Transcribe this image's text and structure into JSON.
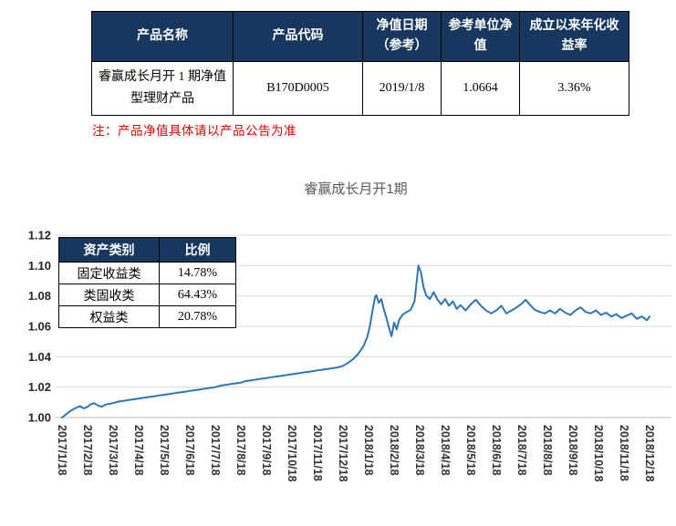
{
  "colors": {
    "header_bg": "#17375E",
    "note_red": "#E00000",
    "line_blue": "#2E75B6",
    "grid_gray": "#D9D9D9",
    "axis_gray": "#BFBFBF",
    "title_gray": "#595959"
  },
  "product_table": {
    "headers": [
      "产品名称",
      "产品代码",
      "净值日期（参考）",
      "参考单位净值",
      "成立以来年化收益率"
    ],
    "rows": [
      [
        "睿赢成长月开 1 期净值型理财产品",
        "B170D0005",
        "2019/1/8",
        "1.0664",
        "3.36%"
      ]
    ]
  },
  "note": "注：产品净值具体请以产品公告为准",
  "chart_data": {
    "type": "line",
    "title": "睿赢成长月开1期",
    "ylabel": "",
    "xlabel": "",
    "ylim": [
      1.0,
      1.12
    ],
    "ytick_step": 0.02,
    "grid": true,
    "x_tick_labels": [
      "2017/1/18",
      "2017/2/18",
      "2017/3/18",
      "2017/4/18",
      "2017/5/18",
      "2017/6/18",
      "2017/7/18",
      "2017/8/18",
      "2017/9/18",
      "2017/10/18",
      "2017/11/18",
      "2017/12/18",
      "2018/1/18",
      "2018/2/18",
      "2018/3/18",
      "2018/4/18",
      "2018/5/18",
      "2018/6/18",
      "2018/7/18",
      "2018/8/18",
      "2018/9/18",
      "2018/10/18",
      "2018/11/18",
      "2018/12/18"
    ],
    "series": [
      {
        "name": "睿赢成长月开1期净值",
        "color": "#2E75B6",
        "points": [
          [
            0,
            1.0
          ],
          [
            0.15,
            1.002
          ],
          [
            0.3,
            1.004
          ],
          [
            0.5,
            1.006
          ],
          [
            0.7,
            1.0075
          ],
          [
            0.85,
            1.006
          ],
          [
            1.0,
            1.007
          ],
          [
            1.1,
            1.0085
          ],
          [
            1.25,
            1.0095
          ],
          [
            1.4,
            1.008
          ],
          [
            1.55,
            1.007
          ],
          [
            1.7,
            1.0085
          ],
          [
            1.85,
            1.009
          ],
          [
            2.0,
            1.0095
          ],
          [
            2.2,
            1.0105
          ],
          [
            2.4,
            1.011
          ],
          [
            2.6,
            1.0115
          ],
          [
            2.8,
            1.012
          ],
          [
            3.0,
            1.0125
          ],
          [
            3.2,
            1.013
          ],
          [
            3.4,
            1.0135
          ],
          [
            3.6,
            1.014
          ],
          [
            3.8,
            1.0145
          ],
          [
            4.0,
            1.015
          ],
          [
            4.2,
            1.0155
          ],
          [
            4.4,
            1.016
          ],
          [
            4.6,
            1.0165
          ],
          [
            4.8,
            1.017
          ],
          [
            5.0,
            1.0175
          ],
          [
            5.2,
            1.018
          ],
          [
            5.4,
            1.0185
          ],
          [
            5.6,
            1.019
          ],
          [
            5.8,
            1.0195
          ],
          [
            6.0,
            1.02
          ],
          [
            6.2,
            1.021
          ],
          [
            6.4,
            1.0215
          ],
          [
            6.6,
            1.022
          ],
          [
            6.8,
            1.0225
          ],
          [
            7.0,
            1.023
          ],
          [
            7.2,
            1.024
          ],
          [
            7.4,
            1.0245
          ],
          [
            7.6,
            1.025
          ],
          [
            7.8,
            1.0255
          ],
          [
            8.0,
            1.026
          ],
          [
            8.2,
            1.0265
          ],
          [
            8.4,
            1.027
          ],
          [
            8.6,
            1.0275
          ],
          [
            8.8,
            1.028
          ],
          [
            9.0,
            1.0285
          ],
          [
            9.2,
            1.029
          ],
          [
            9.4,
            1.0295
          ],
          [
            9.6,
            1.03
          ],
          [
            9.8,
            1.0305
          ],
          [
            10.0,
            1.031
          ],
          [
            10.2,
            1.0315
          ],
          [
            10.4,
            1.032
          ],
          [
            10.6,
            1.0325
          ],
          [
            10.8,
            1.033
          ],
          [
            11.0,
            1.034
          ],
          [
            11.2,
            1.036
          ],
          [
            11.4,
            1.0385
          ],
          [
            11.6,
            1.042
          ],
          [
            11.8,
            1.047
          ],
          [
            11.95,
            1.053
          ],
          [
            12.05,
            1.06
          ],
          [
            12.15,
            1.07
          ],
          [
            12.25,
            1.079
          ],
          [
            12.3,
            1.0805
          ],
          [
            12.4,
            1.0755
          ],
          [
            12.5,
            1.078
          ],
          [
            12.6,
            1.071
          ],
          [
            12.7,
            1.0655
          ],
          [
            12.8,
            1.059
          ],
          [
            12.9,
            1.0535
          ],
          [
            13.0,
            1.0625
          ],
          [
            13.1,
            1.058
          ],
          [
            13.2,
            1.0645
          ],
          [
            13.35,
            1.068
          ],
          [
            13.5,
            1.0695
          ],
          [
            13.65,
            1.071
          ],
          [
            13.8,
            1.0765
          ],
          [
            13.9,
            1.092
          ],
          [
            13.95,
            1.1
          ],
          [
            14.05,
            1.0955
          ],
          [
            14.15,
            1.086
          ],
          [
            14.25,
            1.0805
          ],
          [
            14.4,
            1.078
          ],
          [
            14.55,
            1.0825
          ],
          [
            14.7,
            1.0775
          ],
          [
            14.85,
            1.0745
          ],
          [
            15.0,
            1.078
          ],
          [
            15.15,
            1.0735
          ],
          [
            15.3,
            1.0765
          ],
          [
            15.45,
            1.0715
          ],
          [
            15.6,
            1.074
          ],
          [
            15.8,
            1.0705
          ],
          [
            16.0,
            1.0745
          ],
          [
            16.2,
            1.0775
          ],
          [
            16.4,
            1.0735
          ],
          [
            16.6,
            1.0705
          ],
          [
            16.8,
            1.0685
          ],
          [
            17.0,
            1.0705
          ],
          [
            17.2,
            1.0735
          ],
          [
            17.4,
            1.0685
          ],
          [
            17.6,
            1.0705
          ],
          [
            17.8,
            1.0725
          ],
          [
            18.0,
            1.075
          ],
          [
            18.15,
            1.0775
          ],
          [
            18.3,
            1.0745
          ],
          [
            18.5,
            1.071
          ],
          [
            18.7,
            1.0695
          ],
          [
            18.9,
            1.0685
          ],
          [
            19.1,
            1.0705
          ],
          [
            19.3,
            1.0685
          ],
          [
            19.5,
            1.0715
          ],
          [
            19.7,
            1.069
          ],
          [
            19.9,
            1.0675
          ],
          [
            20.1,
            1.0705
          ],
          [
            20.3,
            1.0725
          ],
          [
            20.5,
            1.0695
          ],
          [
            20.7,
            1.0685
          ],
          [
            20.9,
            1.0705
          ],
          [
            21.1,
            1.0675
          ],
          [
            21.3,
            1.069
          ],
          [
            21.5,
            1.0665
          ],
          [
            21.7,
            1.068
          ],
          [
            21.9,
            1.0655
          ],
          [
            22.1,
            1.067
          ],
          [
            22.3,
            1.0685
          ],
          [
            22.5,
            1.065
          ],
          [
            22.7,
            1.0665
          ],
          [
            22.9,
            1.064
          ],
          [
            23.0,
            1.0665
          ]
        ]
      }
    ],
    "asset_table": {
      "headers": [
        "资产类别",
        "比例"
      ],
      "rows": [
        [
          "固定收益类",
          "14.78%"
        ],
        [
          "类固收类",
          "64.43%"
        ],
        [
          "权益类",
          "20.78%"
        ]
      ]
    }
  }
}
